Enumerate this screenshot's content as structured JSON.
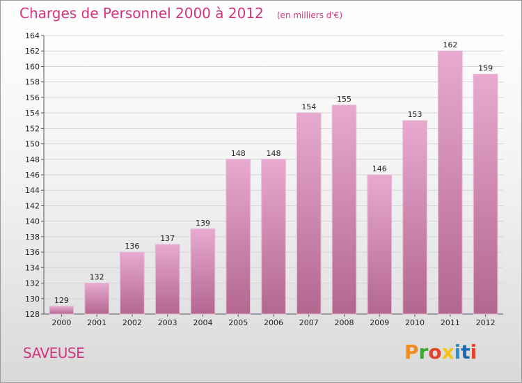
{
  "header": {
    "title": "Charges de Personnel 2000 à 2012",
    "subtitle": "(en milliers d'€)"
  },
  "footer": {
    "commune": "SAVEUSE",
    "brand": "Proxiti"
  },
  "colors": {
    "title": "#d4337e",
    "bar_light": "#e8a9d0",
    "bar_dark": "#b2678f",
    "brand_letters": [
      "#f28a1a",
      "#3fa535",
      "#e2452a",
      "#f3c316",
      "#2b8fd6",
      "#1a6bb5",
      "#e2452a"
    ]
  },
  "chart_data": {
    "type": "bar",
    "categories": [
      "2000",
      "2001",
      "2002",
      "2003",
      "2004",
      "2005",
      "2006",
      "2007",
      "2008",
      "2009",
      "2010",
      "2011",
      "2012"
    ],
    "values": [
      129,
      132,
      136,
      137,
      139,
      148,
      148,
      154,
      155,
      146,
      153,
      162,
      159
    ],
    "ylim": [
      128,
      164
    ],
    "yticks": [
      128,
      130,
      132,
      134,
      136,
      138,
      140,
      142,
      144,
      146,
      148,
      150,
      152,
      154,
      156,
      158,
      160,
      162,
      164
    ],
    "grid": true
  }
}
